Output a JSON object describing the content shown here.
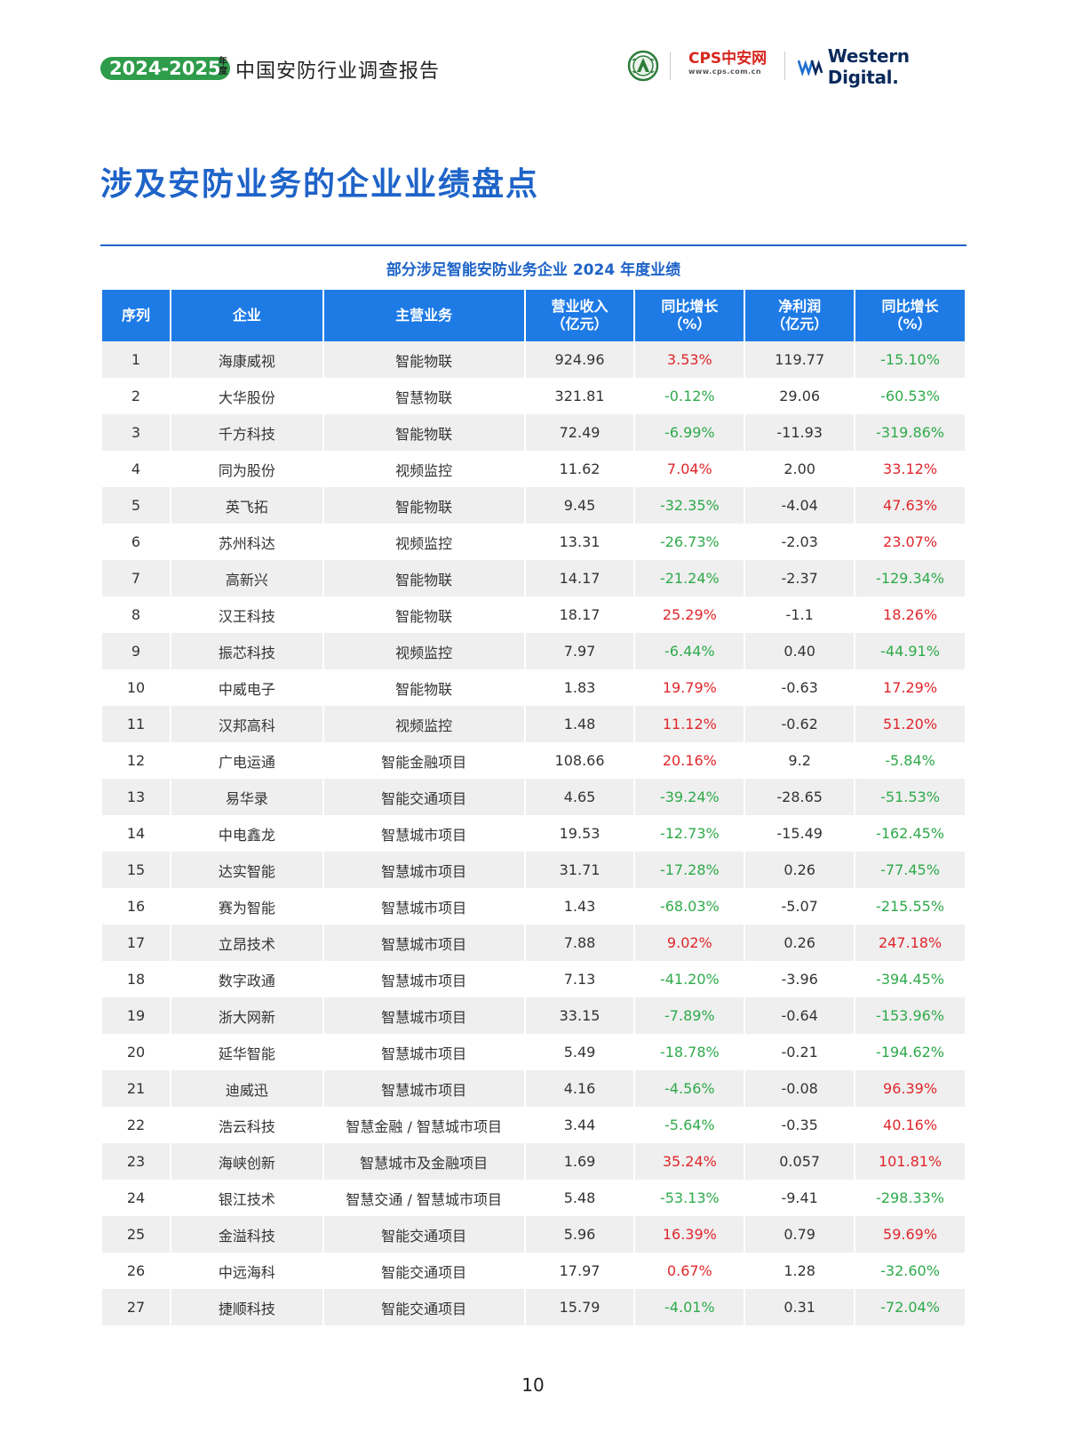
{
  "header": {
    "year_badge": "2024-2025",
    "year_suffix": "年度",
    "report_title": "中国安防行业调查报告",
    "cps_logo_text": "CPS中安网",
    "cps_logo_url": "www.cps.com.cn",
    "wd_logo_text": "Western Digital."
  },
  "page_title": "涉及安防业务的企业业绩盘点",
  "table": {
    "caption": "部分涉足智能安防业务企业 2024 年度业绩",
    "headers": {
      "index": "序列",
      "company": "企业",
      "business": "主营业务",
      "revenue_l1": "营业收入",
      "revenue_l2": "（亿元）",
      "rev_growth_l1": "同比增长",
      "rev_growth_l2": "（%）",
      "profit_l1": "净利润",
      "profit_l2": "（亿元）",
      "profit_growth_l1": "同比增长",
      "profit_growth_l2": "（%）"
    },
    "rows": [
      {
        "index": "1",
        "company": "海康威视",
        "business": "智能物联",
        "revenue": "924.96",
        "rev_growth": "3.53%",
        "profit": "119.77",
        "profit_growth": "-15.10%"
      },
      {
        "index": "2",
        "company": "大华股份",
        "business": "智慧物联",
        "revenue": "321.81",
        "rev_growth": "-0.12%",
        "profit": "29.06",
        "profit_growth": "-60.53%"
      },
      {
        "index": "3",
        "company": "千方科技",
        "business": "智能物联",
        "revenue": "72.49",
        "rev_growth": "-6.99%",
        "profit": "-11.93",
        "profit_growth": "-319.86%"
      },
      {
        "index": "4",
        "company": "同为股份",
        "business": "视频监控",
        "revenue": "11.62",
        "rev_growth": "7.04%",
        "profit": "2.00",
        "profit_growth": "33.12%"
      },
      {
        "index": "5",
        "company": "英飞拓",
        "business": "智能物联",
        "revenue": "9.45",
        "rev_growth": "-32.35%",
        "profit": "-4.04",
        "profit_growth": "47.63%"
      },
      {
        "index": "6",
        "company": "苏州科达",
        "business": "视频监控",
        "revenue": "13.31",
        "rev_growth": "-26.73%",
        "profit": "-2.03",
        "profit_growth": "23.07%"
      },
      {
        "index": "7",
        "company": "高新兴",
        "business": "智能物联",
        "revenue": "14.17",
        "rev_growth": "-21.24%",
        "profit": "-2.37",
        "profit_growth": "-129.34%"
      },
      {
        "index": "8",
        "company": "汉王科技",
        "business": "智能物联",
        "revenue": "18.17",
        "rev_growth": "25.29%",
        "profit": "-1.1",
        "profit_growth": "18.26%"
      },
      {
        "index": "9",
        "company": "振芯科技",
        "business": "视频监控",
        "revenue": "7.97",
        "rev_growth": "-6.44%",
        "profit": "0.40",
        "profit_growth": "-44.91%"
      },
      {
        "index": "10",
        "company": "中威电子",
        "business": "智能物联",
        "revenue": "1.83",
        "rev_growth": "19.79%",
        "profit": "-0.63",
        "profit_growth": "17.29%"
      },
      {
        "index": "11",
        "company": "汉邦高科",
        "business": "视频监控",
        "revenue": "1.48",
        "rev_growth": "11.12%",
        "profit": "-0.62",
        "profit_growth": "51.20%"
      },
      {
        "index": "12",
        "company": "广电运通",
        "business": "智能金融项目",
        "revenue": "108.66",
        "rev_growth": "20.16%",
        "profit": "9.2",
        "profit_growth": "-5.84%"
      },
      {
        "index": "13",
        "company": "易华录",
        "business": "智能交通项目",
        "revenue": "4.65",
        "rev_growth": "-39.24%",
        "profit": "-28.65",
        "profit_growth": "-51.53%"
      },
      {
        "index": "14",
        "company": "中电鑫龙",
        "business": "智慧城市项目",
        "revenue": "19.53",
        "rev_growth": "-12.73%",
        "profit": "-15.49",
        "profit_growth": "-162.45%"
      },
      {
        "index": "15",
        "company": "达实智能",
        "business": "智慧城市项目",
        "revenue": "31.71",
        "rev_growth": "-17.28%",
        "profit": "0.26",
        "profit_growth": "-77.45%"
      },
      {
        "index": "16",
        "company": "赛为智能",
        "business": "智慧城市项目",
        "revenue": "1.43",
        "rev_growth": "-68.03%",
        "profit": "-5.07",
        "profit_growth": "-215.55%"
      },
      {
        "index": "17",
        "company": "立昂技术",
        "business": "智慧城市项目",
        "revenue": "7.88",
        "rev_growth": "9.02%",
        "profit": "0.26",
        "profit_growth": "247.18%"
      },
      {
        "index": "18",
        "company": "数字政通",
        "business": "智慧城市项目",
        "revenue": "7.13",
        "rev_growth": "-41.20%",
        "profit": "-3.96",
        "profit_growth": "-394.45%"
      },
      {
        "index": "19",
        "company": "浙大网新",
        "business": "智慧城市项目",
        "revenue": "33.15",
        "rev_growth": "-7.89%",
        "profit": "-0.64",
        "profit_growth": "-153.96%"
      },
      {
        "index": "20",
        "company": "延华智能",
        "business": "智慧城市项目",
        "revenue": "5.49",
        "rev_growth": "-18.78%",
        "profit": "-0.21",
        "profit_growth": "-194.62%"
      },
      {
        "index": "21",
        "company": "迪威迅",
        "business": "智慧城市项目",
        "revenue": "4.16",
        "rev_growth": "-4.56%",
        "profit": "-0.08",
        "profit_growth": "96.39%"
      },
      {
        "index": "22",
        "company": "浩云科技",
        "business": "智慧金融 / 智慧城市项目",
        "revenue": "3.44",
        "rev_growth": "-5.64%",
        "profit": "-0.35",
        "profit_growth": "40.16%"
      },
      {
        "index": "23",
        "company": "海峡创新",
        "business": "智慧城市及金融项目",
        "revenue": "1.69",
        "rev_growth": "35.24%",
        "profit": "0.057",
        "profit_growth": "101.81%"
      },
      {
        "index": "24",
        "company": "银江技术",
        "business": "智慧交通 / 智慧城市项目",
        "revenue": "5.48",
        "rev_growth": "-53.13%",
        "profit": "-9.41",
        "profit_growth": "-298.33%"
      },
      {
        "index": "25",
        "company": "金溢科技",
        "business": "智能交通项目",
        "revenue": "5.96",
        "rev_growth": "16.39%",
        "profit": "0.79",
        "profit_growth": "59.69%"
      },
      {
        "index": "26",
        "company": "中远海科",
        "business": "智能交通项目",
        "revenue": "17.97",
        "rev_growth": "0.67%",
        "profit": "1.28",
        "profit_growth": "-32.60%"
      },
      {
        "index": "27",
        "company": "捷顺科技",
        "business": "智能交通项目",
        "revenue": "15.79",
        "rev_growth": "-4.01%",
        "profit": "0.31",
        "profit_growth": "-72.04%"
      }
    ]
  },
  "page_number": "10",
  "colors": {
    "accent_blue": "#1e63c8",
    "header_blue": "#1e7be6",
    "badge_green": "#2e9c4a",
    "positive_red": "#e0262b",
    "negative_green": "#2eaa4a",
    "stripe_gray": "#efefef"
  }
}
